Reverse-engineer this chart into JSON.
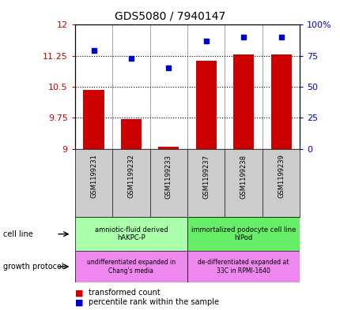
{
  "title": "GDS5080 / 7940147",
  "samples": [
    "GSM1199231",
    "GSM1199232",
    "GSM1199233",
    "GSM1199237",
    "GSM1199238",
    "GSM1199239"
  ],
  "transformed_count": [
    10.43,
    9.72,
    9.05,
    11.13,
    11.28,
    11.28
  ],
  "percentile_rank": [
    79,
    73,
    65,
    87,
    90,
    90
  ],
  "ylim_left": [
    9.0,
    12.0
  ],
  "ylim_right": [
    0,
    100
  ],
  "yticks_left": [
    9.0,
    9.75,
    10.5,
    11.25,
    12.0
  ],
  "ytick_labels_left": [
    "9",
    "9.75",
    "10.5",
    "11.25",
    "12"
  ],
  "yticks_right": [
    0,
    25,
    50,
    75,
    100
  ],
  "ytick_labels_right": [
    "0",
    "25",
    "50",
    "75",
    "100%"
  ],
  "bar_color": "#cc0000",
  "dot_color": "#0000cc",
  "grid_color": "#000000",
  "cell_line_groups": [
    {
      "label": "amniotic-fluid derived\nhAKPC-P",
      "start": 0,
      "end": 3,
      "color": "#aaffaa"
    },
    {
      "label": "immortalized podocyte cell line\nhIPod",
      "start": 3,
      "end": 6,
      "color": "#66ee66"
    }
  ],
  "growth_protocol_groups": [
    {
      "label": "undifferentiated expanded in\nChang's media",
      "start": 0,
      "end": 3,
      "color": "#ee88ee"
    },
    {
      "label": "de-differentiated expanded at\n33C in RPMI-1640",
      "start": 3,
      "end": 6,
      "color": "#ee88ee"
    }
  ],
  "cell_line_label": "cell line",
  "growth_protocol_label": "growth protocol",
  "legend_bar_label": "transformed count",
  "legend_dot_label": "percentile rank within the sample",
  "background_color": "#ffffff",
  "tick_label_color_left": "#cc0000",
  "tick_label_color_right": "#0000cc",
  "sample_bg_color": "#cccccc"
}
